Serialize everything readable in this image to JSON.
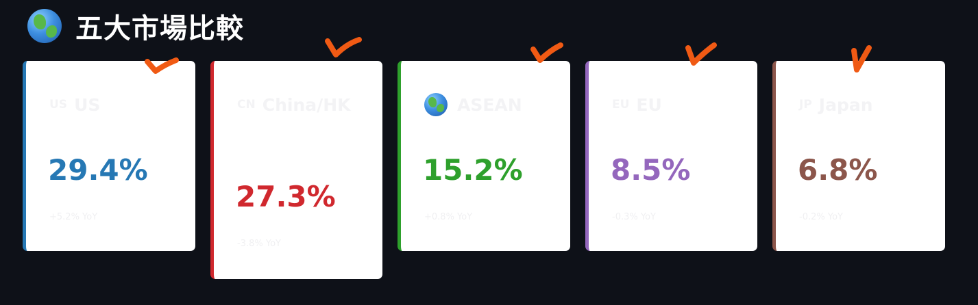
{
  "header": {
    "icon": "globe-icon",
    "title": "五大市場比較"
  },
  "colors": {
    "background": "#0e1118",
    "card": "#ffffff",
    "annotation": "#f05a14"
  },
  "markets": [
    {
      "flag": "US",
      "name": "US",
      "value": "29.4%",
      "delta": "+5.2% YoY",
      "color": "#2678b4"
    },
    {
      "flag": "CN",
      "name": "China/HK",
      "value": "27.3%",
      "delta": "-3.8% YoY",
      "color": "#d0282e"
    },
    {
      "icon": "globe-icon",
      "name": "ASEAN",
      "value": "15.2%",
      "delta": "+0.8% YoY",
      "color": "#2ea02c"
    },
    {
      "flag": "EU",
      "name": "EU",
      "value": "8.5%",
      "delta": "-0.3% YoY",
      "color": "#9467bd"
    },
    {
      "flag": "JP",
      "name": "Japan",
      "value": "6.8%",
      "delta": "-0.2% YoY",
      "color": "#8c564b"
    }
  ]
}
